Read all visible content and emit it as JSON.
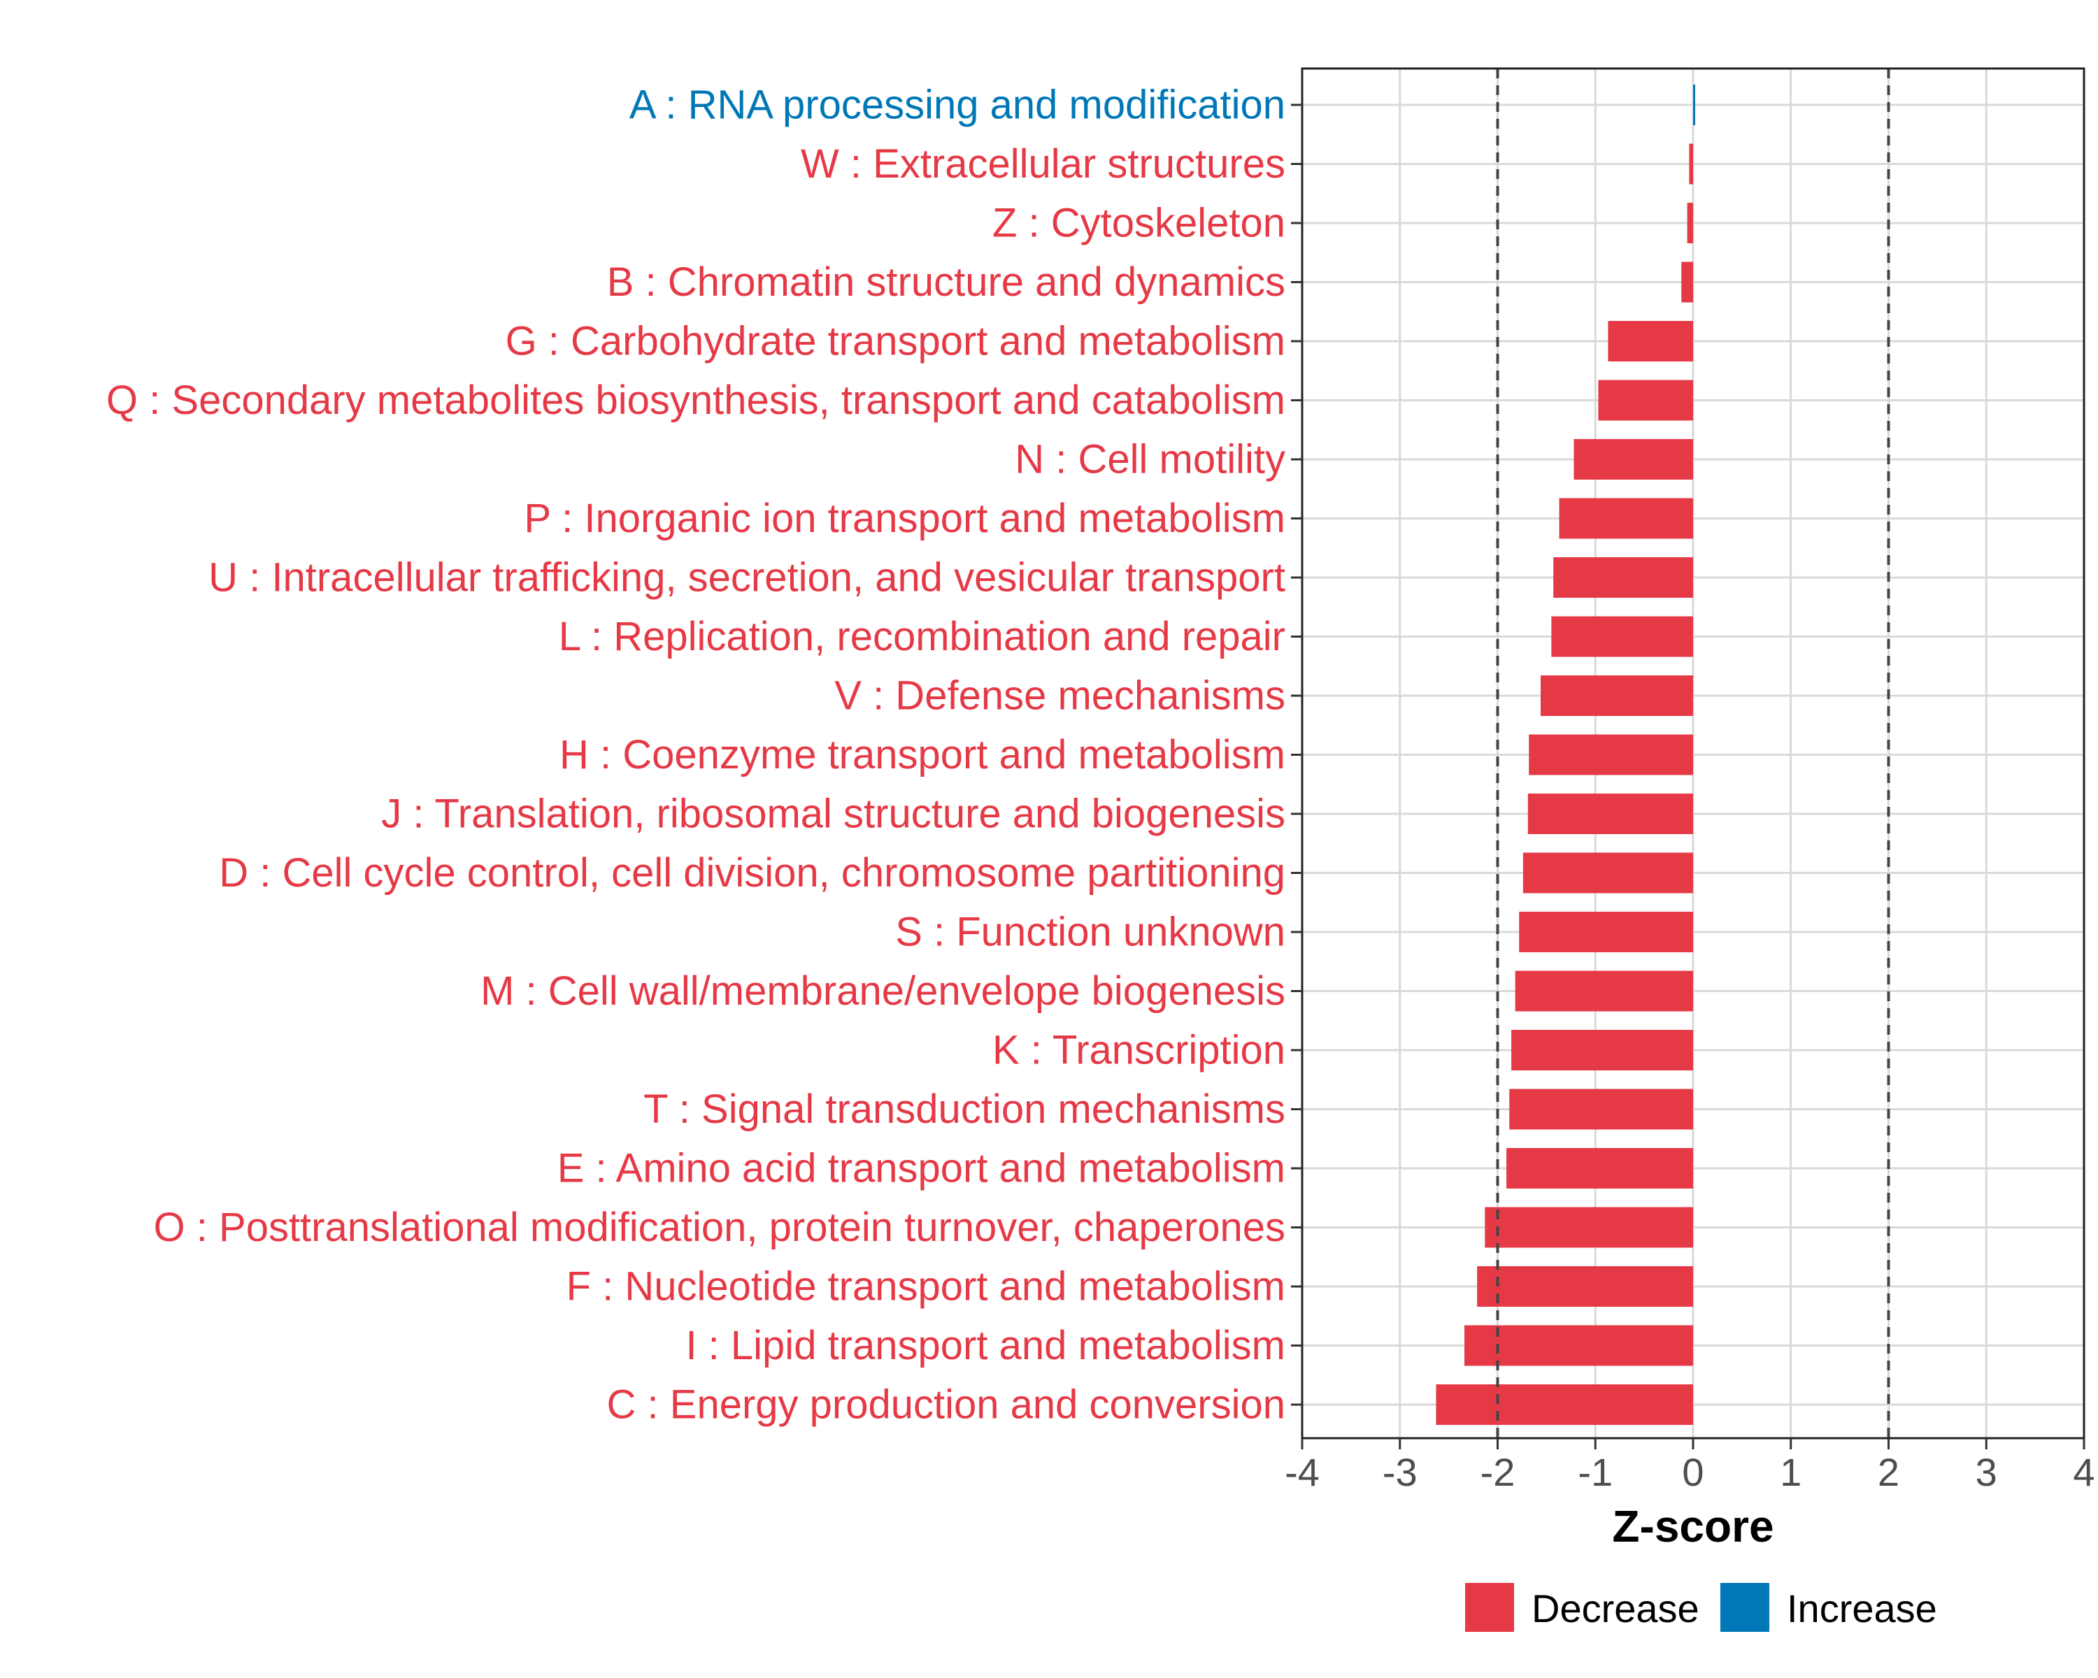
{
  "chart_data": {
    "type": "bar",
    "orientation": "horizontal",
    "xlabel": "Z-score",
    "xlim": [
      -4,
      4
    ],
    "xticks": [
      -4,
      -3,
      -2,
      -1,
      0,
      1,
      2,
      3,
      4
    ],
    "tick_labels": [
      "-4",
      "-3",
      "-2",
      "-1",
      "0",
      "1",
      "2",
      "3",
      "4"
    ],
    "reference_lines": [
      -2,
      2
    ],
    "grid": true,
    "colors": {
      "Decrease": "#e63946",
      "Increase": "#0077b6",
      "grid": "#d9d9d9",
      "reference_line": "#444444"
    },
    "legend": {
      "position": "bottom",
      "entries": [
        "Decrease",
        "Increase"
      ]
    },
    "categories": [
      "A : RNA processing and modification",
      "W : Extracellular structures",
      "Z : Cytoskeleton",
      "B : Chromatin structure and dynamics",
      "G : Carbohydrate transport and metabolism",
      "Q : Secondary metabolites biosynthesis, transport and catabolism",
      "N : Cell motility",
      "P : Inorganic ion transport and metabolism",
      "U : Intracellular trafficking, secretion, and vesicular transport",
      "L : Replication, recombination and repair",
      "V : Defense mechanisms",
      "H : Coenzyme transport and metabolism",
      "J : Translation, ribosomal structure and biogenesis",
      "D : Cell cycle control, cell division, chromosome partitioning",
      "S : Function unknown",
      "M : Cell wall/membrane/envelope biogenesis",
      "K : Transcription",
      "T : Signal transduction mechanisms",
      "E : Amino acid transport and metabolism",
      "O : Posttranslational modification, protein turnover, chaperones",
      "F : Nucleotide transport and metabolism",
      "I : Lipid transport and metabolism",
      "C : Energy production and conversion"
    ],
    "values": [
      0.01,
      -0.04,
      -0.06,
      -0.12,
      -0.87,
      -0.97,
      -1.22,
      -1.37,
      -1.43,
      -1.45,
      -1.56,
      -1.68,
      -1.69,
      -1.74,
      -1.78,
      -1.82,
      -1.86,
      -1.88,
      -1.91,
      -2.13,
      -2.21,
      -2.34,
      -2.63
    ],
    "direction": [
      "Increase",
      "Decrease",
      "Decrease",
      "Decrease",
      "Decrease",
      "Decrease",
      "Decrease",
      "Decrease",
      "Decrease",
      "Decrease",
      "Decrease",
      "Decrease",
      "Decrease",
      "Decrease",
      "Decrease",
      "Decrease",
      "Decrease",
      "Decrease",
      "Decrease",
      "Decrease",
      "Decrease",
      "Decrease",
      "Decrease"
    ]
  }
}
